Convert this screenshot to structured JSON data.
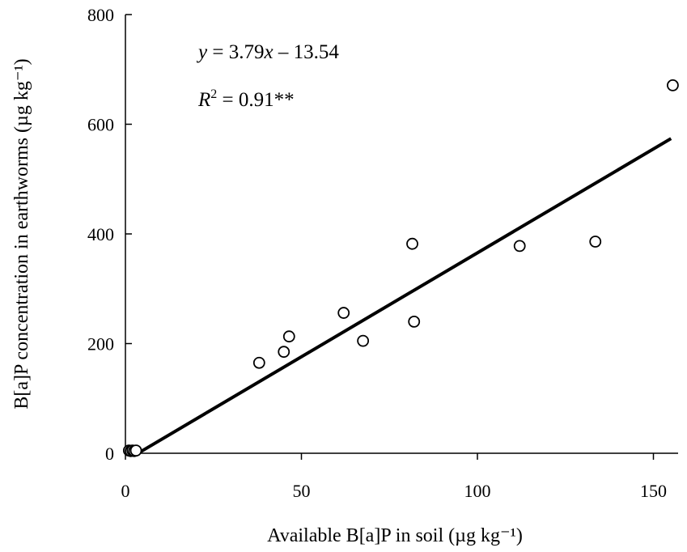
{
  "chart_data": {
    "type": "scatter",
    "xlabel": "Available B[a]P in soil (µg kg⁻¹)",
    "ylabel": "B[a]P concentration in earthworms (µg kg⁻¹)",
    "xlim": [
      0,
      160
    ],
    "ylim": [
      0,
      800
    ],
    "x_ticks": [
      0,
      50,
      100,
      150
    ],
    "y_ticks": [
      0,
      200,
      400,
      600,
      800
    ],
    "grid": false,
    "series": [
      {
        "points": [
          {
            "x": 1,
            "y": 5
          },
          {
            "x": 1.5,
            "y": 4
          },
          {
            "x": 2,
            "y": 5
          },
          {
            "x": 2.5,
            "y": 4
          },
          {
            "x": 3,
            "y": 5
          },
          {
            "x": 38,
            "y": 165
          },
          {
            "x": 45,
            "y": 185
          },
          {
            "x": 46.5,
            "y": 213
          },
          {
            "x": 62,
            "y": 256
          },
          {
            "x": 67.5,
            "y": 205
          },
          {
            "x": 81.5,
            "y": 382
          },
          {
            "x": 82,
            "y": 240
          },
          {
            "x": 112,
            "y": 378
          },
          {
            "x": 133.5,
            "y": 386
          },
          {
            "x": 155.5,
            "y": 671
          }
        ]
      }
    ],
    "fit_line": {
      "slope": 3.79,
      "intercept": -13.54,
      "x_range": [
        3.5,
        155
      ]
    },
    "annotations": {
      "equation_parts": [
        "y",
        " = 3.79",
        "x",
        " – 13.54"
      ],
      "r2_parts": [
        "R",
        "2",
        " = 0.91**"
      ]
    }
  }
}
